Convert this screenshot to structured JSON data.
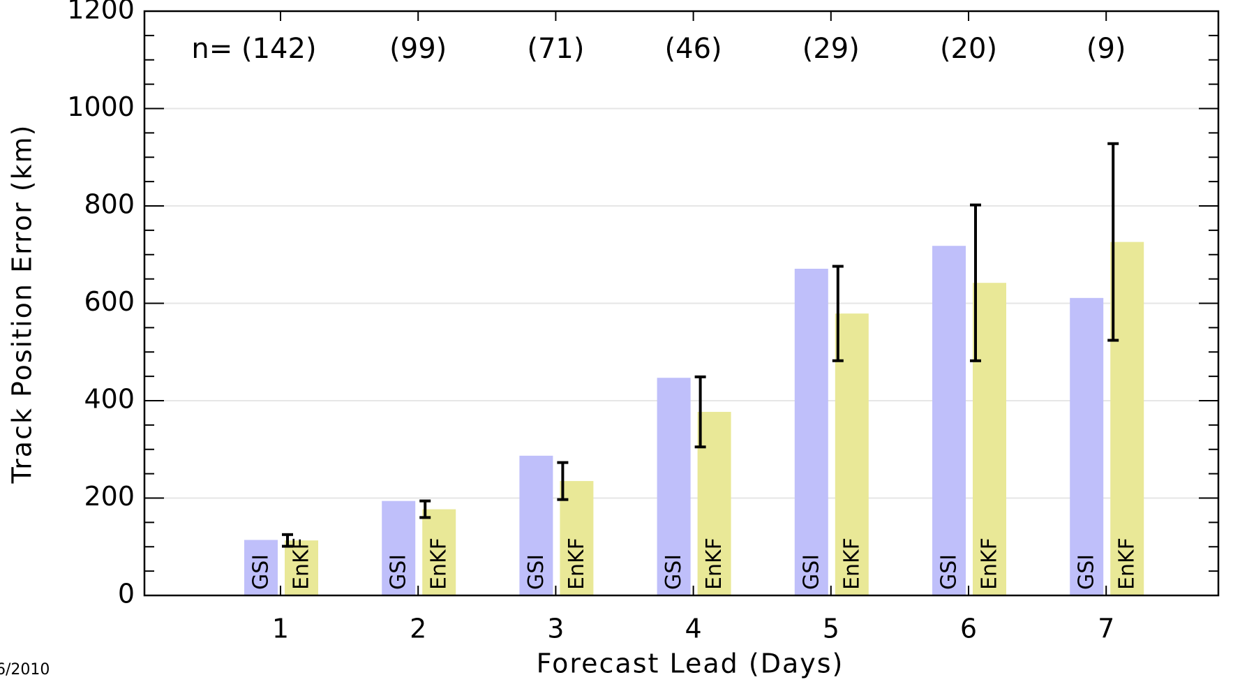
{
  "chart_data": {
    "type": "bar",
    "categories": [
      "1",
      "2",
      "3",
      "4",
      "5",
      "6",
      "7"
    ],
    "series": [
      {
        "name": "GSI",
        "color": "#bfbffa",
        "values": [
          114,
          194,
          287,
          447,
          671,
          718,
          611
        ]
      },
      {
        "name": "EnKF",
        "color": "#e9e897",
        "values": [
          113,
          177,
          235,
          377,
          579,
          642,
          726
        ],
        "errors": [
          12,
          17,
          38,
          72,
          97,
          160,
          202
        ]
      }
    ],
    "annotations": [
      "n= (142)",
      "(99)",
      "(71)",
      "(46)",
      "(29)",
      "(20)",
      "(9)"
    ],
    "xlabel": "Forecast Lead (Days)",
    "ylabel": "Track Position Error (km)",
    "ylim": [
      0,
      1200
    ],
    "yticks": [
      0,
      200,
      400,
      600,
      800,
      1000,
      1200
    ],
    "yminorticks": [
      50,
      100,
      150,
      250,
      300,
      350,
      450,
      500,
      550,
      650,
      700,
      750,
      850,
      900,
      950,
      1050,
      1100,
      1150
    ],
    "grid": true,
    "footer": "6/2010"
  }
}
